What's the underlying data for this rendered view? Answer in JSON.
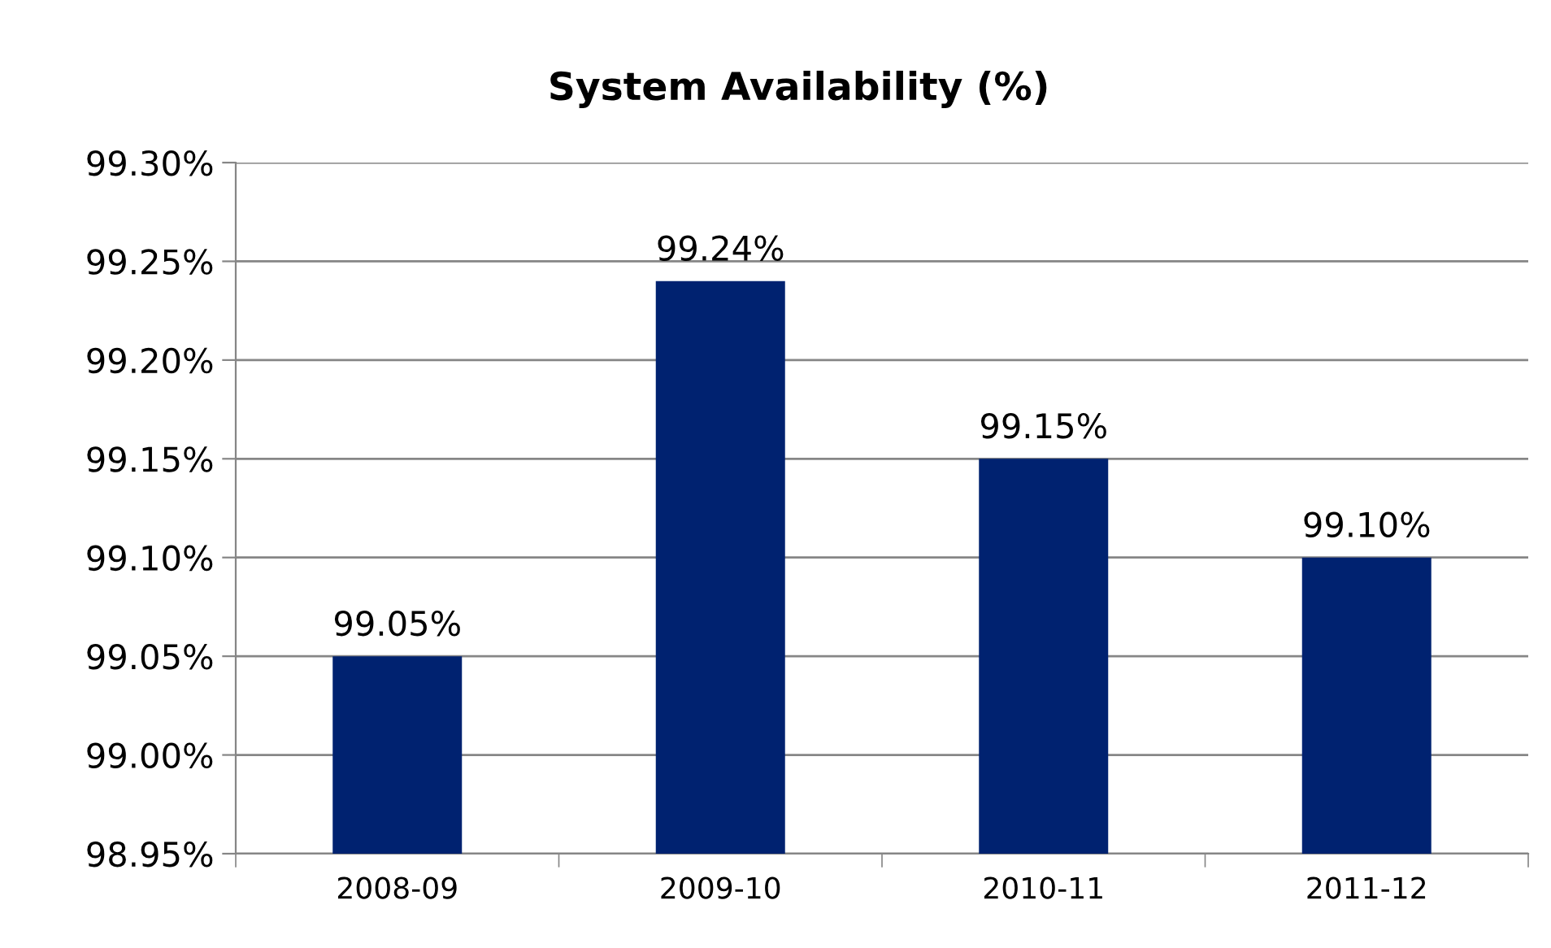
{
  "chart_data": {
    "type": "bar",
    "title": "System Availability (%)",
    "categories": [
      "2008-09",
      "2009-10",
      "2010-11",
      "2011-12"
    ],
    "values": [
      99.05,
      99.24,
      99.15,
      99.1
    ],
    "value_labels": [
      "99.05%",
      "99.24%",
      "99.15%",
      "99.10%"
    ],
    "color": "#002270",
    "ylim": [
      98.95,
      99.3
    ],
    "yticks": [
      {
        "value": 98.95,
        "label": "98.95%"
      },
      {
        "value": 99.0,
        "label": "99.00%"
      },
      {
        "value": 99.05,
        "label": "99.05%"
      },
      {
        "value": 99.1,
        "label": "99.10%"
      },
      {
        "value": 99.15,
        "label": "99.15%"
      },
      {
        "value": 99.2,
        "label": "99.20%"
      },
      {
        "value": 99.25,
        "label": "99.25%"
      },
      {
        "value": 99.3,
        "label": "99.30%"
      }
    ],
    "grid": "y",
    "legend": false
  }
}
